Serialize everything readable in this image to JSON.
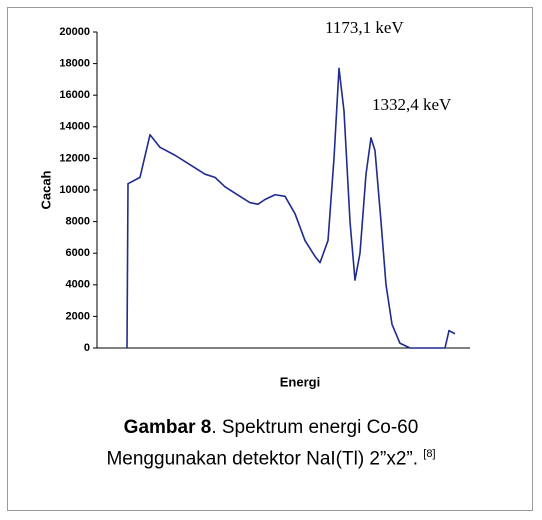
{
  "chart_data": {
    "type": "line",
    "ylabel": "Cacah",
    "xlabel": "Energi",
    "x": [
      30,
      31,
      43,
      53,
      63,
      78,
      93,
      108,
      118,
      128,
      138,
      153,
      161,
      168,
      178,
      188,
      198,
      208,
      218,
      223,
      231,
      237,
      242,
      247,
      253,
      258,
      263,
      269,
      274,
      278,
      284,
      289,
      295,
      303,
      313,
      348,
      352,
      358
    ],
    "series": [
      {
        "color": "#1f2b8f",
        "values": [
          0,
          10400,
          10800,
          13500,
          12700,
          12200,
          11600,
          11000,
          10800,
          10200,
          9800,
          9200,
          9100,
          9400,
          9700,
          9600,
          8500,
          6800,
          5800,
          5400,
          6800,
          12000,
          17700,
          15000,
          8000,
          4300,
          6000,
          11000,
          13300,
          12500,
          8000,
          4000,
          1500,
          300,
          0,
          0,
          1100,
          900
        ]
      }
    ],
    "xlim": [
      0,
      373
    ],
    "ylim": [
      0,
      20000
    ],
    "yticks": [
      0,
      2000,
      4000,
      6000,
      8000,
      10000,
      12000,
      14000,
      16000,
      18000,
      20000
    ],
    "annotations": [
      "1173,1 keV",
      "1332,4 keV"
    ]
  },
  "caption": {
    "label": "Gambar 8",
    "line1": ". Spektrum energi Co-60",
    "line2": "Menggunakan detektor NaI(Tl) 2”x2”.",
    "ref": "[8]"
  }
}
